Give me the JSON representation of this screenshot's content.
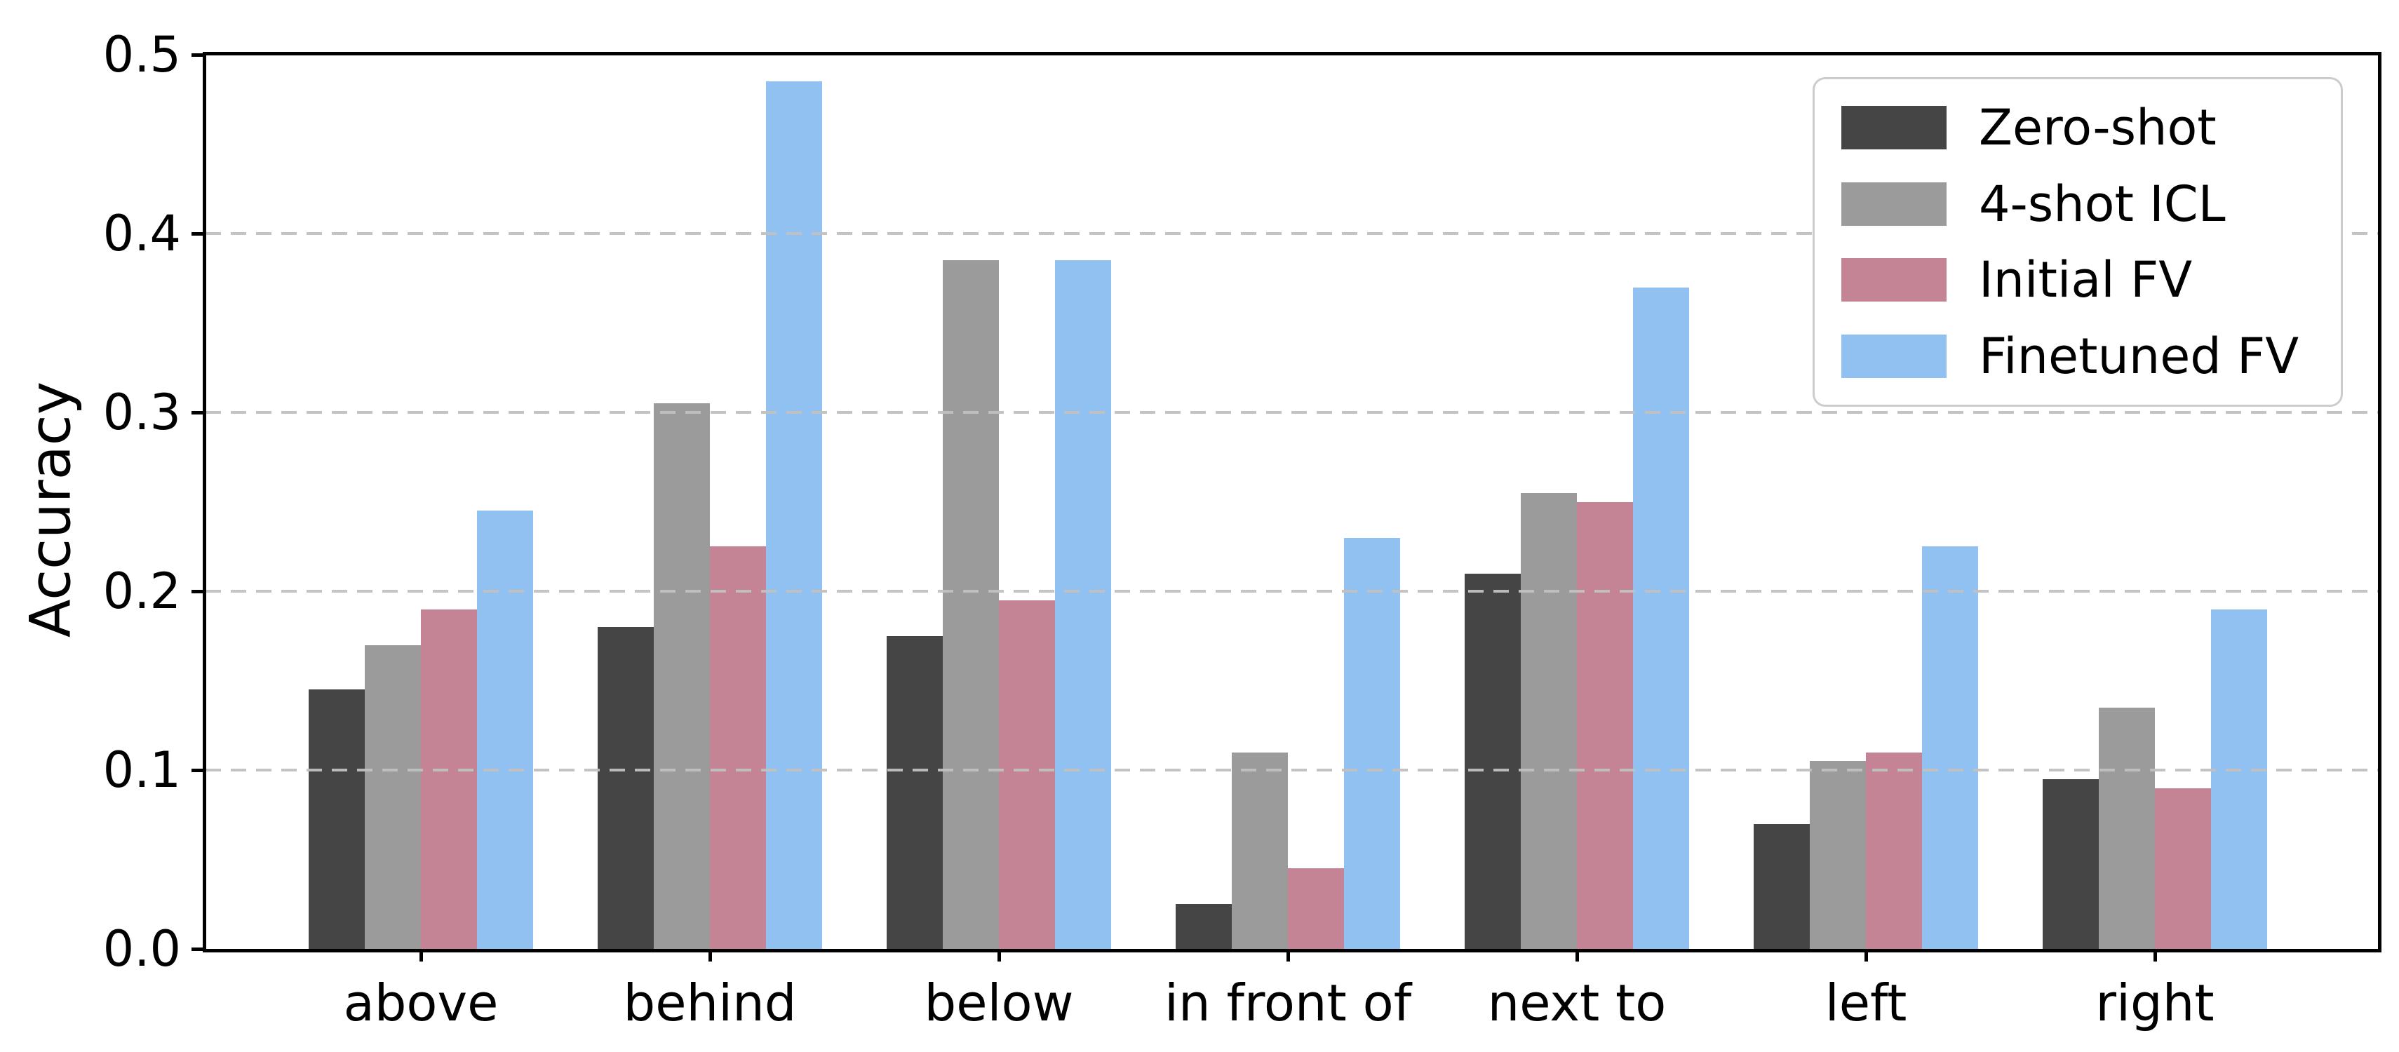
{
  "chart_data": {
    "type": "bar",
    "title": "",
    "xlabel": "",
    "ylabel": "Accuracy",
    "ylim": [
      0,
      0.5
    ],
    "yticks": [
      "0.0",
      "0.1",
      "0.2",
      "0.3",
      "0.4",
      "0.5"
    ],
    "grid": true,
    "grid_style": "dashed",
    "legend_position": "upper right",
    "categories": [
      "above",
      "behind",
      "below",
      "in front of",
      "next to",
      "left",
      "right"
    ],
    "series": [
      {
        "name": "Zero-shot",
        "color": "#454545",
        "values": [
          0.145,
          0.18,
          0.175,
          0.025,
          0.21,
          0.07,
          0.095
        ]
      },
      {
        "name": "4-shot ICL",
        "color": "#9b9b9b",
        "values": [
          0.17,
          0.305,
          0.385,
          0.11,
          0.255,
          0.105,
          0.135
        ]
      },
      {
        "name": "Initial FV",
        "color": "#c48496",
        "values": [
          0.19,
          0.225,
          0.195,
          0.045,
          0.25,
          0.11,
          0.09
        ]
      },
      {
        "name": "Finetuned FV",
        "color": "#90c1f0",
        "values": [
          0.245,
          0.485,
          0.385,
          0.23,
          0.37,
          0.225,
          0.19
        ]
      }
    ]
  }
}
